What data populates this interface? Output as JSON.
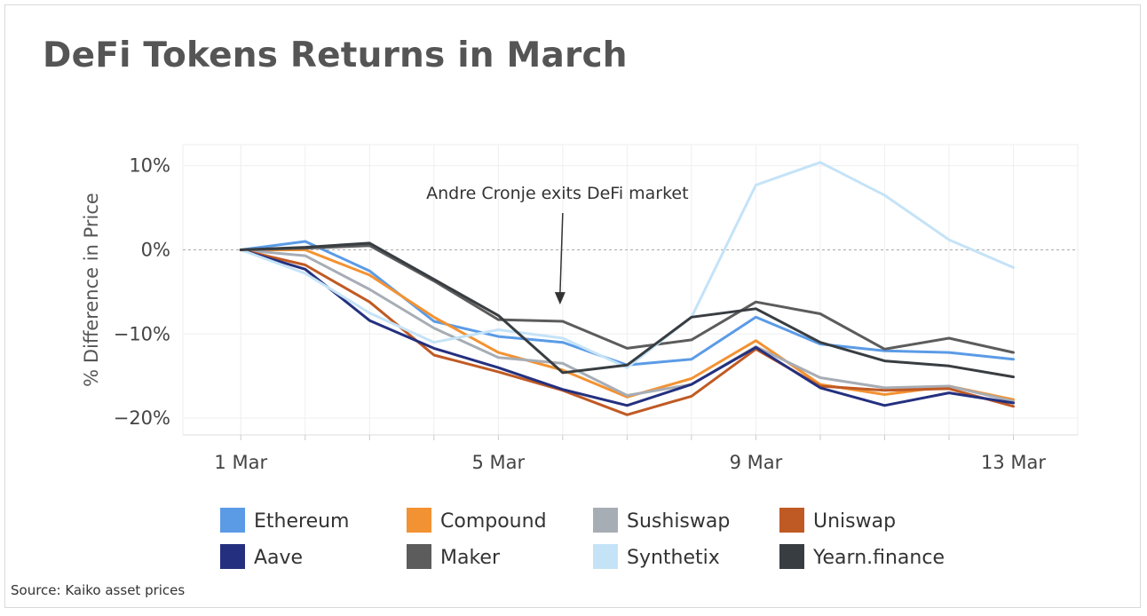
{
  "chart_data": {
    "type": "line",
    "title": "DeFi Tokens Returns in March",
    "xlabel": "",
    "ylabel": "% Difference in Price",
    "x": [
      1,
      2,
      3,
      4,
      5,
      6,
      7,
      8,
      9,
      10,
      11,
      12,
      13
    ],
    "x_ticks": [
      {
        "value": 1,
        "label": "1 Mar"
      },
      {
        "value": 5,
        "label": "5 Mar"
      },
      {
        "value": 9,
        "label": "9 Mar"
      },
      {
        "value": 13,
        "label": "13 Mar"
      }
    ],
    "y_ticks": [
      {
        "value": 10,
        "label": "10%"
      },
      {
        "value": 0,
        "label": "0%"
      },
      {
        "value": -10,
        "label": "−10%"
      },
      {
        "value": -20,
        "label": "−20%"
      }
    ],
    "xlim": [
      0.1,
      14
    ],
    "ylim": [
      -22,
      12.5
    ],
    "grid": true,
    "legend_position": "bottom",
    "annotation": {
      "text": "Andre Cronje exits DeFi market",
      "x": 6,
      "y": -6.5
    },
    "series": [
      {
        "name": "Ethereum",
        "color": "#5b9be6",
        "values": [
          0,
          1,
          -2.5,
          -8.5,
          -10.3,
          -11,
          -13.7,
          -13,
          -8,
          -11.2,
          -12,
          -12.2,
          -13
        ]
      },
      {
        "name": "Compound",
        "color": "#f39232",
        "values": [
          0,
          0,
          -3,
          -8,
          -12.2,
          -14.3,
          -17.5,
          -15.3,
          -10.8,
          -16,
          -17.2,
          -16.2,
          -17.8
        ]
      },
      {
        "name": "Sushiswap",
        "color": "#a7adb5",
        "values": [
          0,
          -0.7,
          -4.7,
          -9.3,
          -12.8,
          -13.5,
          -17.3,
          -16,
          -11.5,
          -15.2,
          -16.4,
          -16.2,
          -18
        ]
      },
      {
        "name": "Uniswap",
        "color": "#c05a24",
        "values": [
          0,
          -1.8,
          -6.2,
          -12.5,
          -14.5,
          -16.7,
          -19.6,
          -17.4,
          -11.8,
          -16.2,
          -16.7,
          -16.5,
          -18.6
        ]
      },
      {
        "name": "Aave",
        "color": "#24307f",
        "values": [
          0,
          -2.3,
          -8.4,
          -11.7,
          -14,
          -16.6,
          -18.5,
          -16,
          -11.6,
          -16.4,
          -18.5,
          -17,
          -18.2
        ]
      },
      {
        "name": "Maker",
        "color": "#5c5c5c",
        "values": [
          0,
          0.2,
          0.5,
          -3.7,
          -8.3,
          -8.5,
          -11.7,
          -10.7,
          -6.2,
          -7.6,
          -11.8,
          -10.5,
          -12.2
        ]
      },
      {
        "name": "Synthetix",
        "color": "#c5e3f7",
        "values": [
          0,
          -2.8,
          -7.5,
          -11,
          -9.5,
          -10.5,
          -14,
          -8,
          7.7,
          10.4,
          6.5,
          1.2,
          -2.1
        ]
      },
      {
        "name": "Yearn.finance",
        "color": "#383d41",
        "values": [
          0,
          0.3,
          0.8,
          -3.5,
          -7.8,
          -14.6,
          -13.7,
          -8,
          -7,
          -11,
          -13.2,
          -13.8,
          -15.1
        ]
      }
    ]
  },
  "source": "Source: Kaiko asset prices"
}
